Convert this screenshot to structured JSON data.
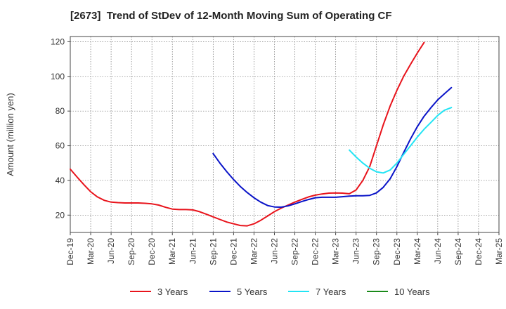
{
  "chart_data": {
    "type": "line",
    "title": "[2673]  Trend of StDev of 12-Month Moving Sum of Operating CF",
    "ylabel": "Amount (million yen)",
    "xlabel": "",
    "ylim": [
      10,
      123
    ],
    "yticks": [
      20,
      40,
      60,
      80,
      100,
      120
    ],
    "categories": [
      "Dec-19",
      "Mar-20",
      "Jun-20",
      "Sep-20",
      "Dec-20",
      "Mar-21",
      "Jun-21",
      "Sep-21",
      "Dec-21",
      "Mar-22",
      "Jun-22",
      "Sep-22",
      "Dec-22",
      "Mar-23",
      "Jun-23",
      "Sep-23",
      "Dec-23",
      "Mar-24",
      "Jun-24",
      "Sep-24",
      "Dec-24",
      "Mar-25"
    ],
    "grid": true,
    "legend_position": "bottom",
    "series": [
      {
        "name": "3 Years",
        "color": "#e8141c",
        "points": [
          [
            0,
            46.5
          ],
          [
            0.33,
            42
          ],
          [
            0.67,
            37.5
          ],
          [
            1,
            33.5
          ],
          [
            1.33,
            30.5
          ],
          [
            1.67,
            28.5
          ],
          [
            2,
            27.5
          ],
          [
            2.33,
            27.2
          ],
          [
            2.67,
            27
          ],
          [
            3,
            27
          ],
          [
            3.33,
            27
          ],
          [
            3.67,
            26.8
          ],
          [
            4,
            26.5
          ],
          [
            4.33,
            25.8
          ],
          [
            4.67,
            24.5
          ],
          [
            5,
            23.5
          ],
          [
            5.33,
            23.2
          ],
          [
            5.67,
            23.2
          ],
          [
            6,
            23
          ],
          [
            6.33,
            22
          ],
          [
            6.67,
            20.5
          ],
          [
            7,
            19
          ],
          [
            7.33,
            17.5
          ],
          [
            7.67,
            16
          ],
          [
            8,
            15
          ],
          [
            8.33,
            14
          ],
          [
            8.67,
            13.8
          ],
          [
            9,
            15
          ],
          [
            9.33,
            17
          ],
          [
            9.67,
            19.5
          ],
          [
            10,
            22
          ],
          [
            10.33,
            24
          ],
          [
            10.67,
            25.8
          ],
          [
            11,
            27.5
          ],
          [
            11.33,
            29
          ],
          [
            11.67,
            30.5
          ],
          [
            12,
            31.5
          ],
          [
            12.33,
            32.2
          ],
          [
            12.67,
            32.7
          ],
          [
            13,
            32.8
          ],
          [
            13.33,
            32.7
          ],
          [
            13.67,
            32.3
          ],
          [
            14,
            34.5
          ],
          [
            14.33,
            40
          ],
          [
            14.67,
            48
          ],
          [
            15,
            60
          ],
          [
            15.33,
            72
          ],
          [
            15.67,
            83
          ],
          [
            16,
            92
          ],
          [
            16.33,
            100
          ],
          [
            16.67,
            107
          ],
          [
            17,
            113.5
          ],
          [
            17.33,
            119.5
          ]
        ]
      },
      {
        "name": "5 Years",
        "color": "#0a14c8",
        "points": [
          [
            7,
            55.5
          ],
          [
            7.33,
            50
          ],
          [
            7.67,
            45
          ],
          [
            8,
            40.5
          ],
          [
            8.33,
            36.5
          ],
          [
            8.67,
            33
          ],
          [
            9,
            30
          ],
          [
            9.33,
            27.5
          ],
          [
            9.67,
            25.5
          ],
          [
            10,
            24.7
          ],
          [
            10.33,
            24.6
          ],
          [
            10.67,
            25.3
          ],
          [
            11,
            26.5
          ],
          [
            11.33,
            27.8
          ],
          [
            11.67,
            29
          ],
          [
            12,
            30
          ],
          [
            12.33,
            30.3
          ],
          [
            12.67,
            30.3
          ],
          [
            13,
            30.3
          ],
          [
            13.33,
            30.6
          ],
          [
            13.67,
            31
          ],
          [
            14,
            31.2
          ],
          [
            14.33,
            31.2
          ],
          [
            14.67,
            31.4
          ],
          [
            15,
            32.8
          ],
          [
            15.33,
            36
          ],
          [
            15.67,
            41
          ],
          [
            16,
            48
          ],
          [
            16.33,
            56
          ],
          [
            16.67,
            64
          ],
          [
            17,
            71
          ],
          [
            17.33,
            77
          ],
          [
            17.67,
            82
          ],
          [
            18,
            86.5
          ],
          [
            18.33,
            90
          ],
          [
            18.67,
            93.5
          ]
        ]
      },
      {
        "name": "7 Years",
        "color": "#22e4f4",
        "points": [
          [
            13.67,
            57.5
          ],
          [
            14,
            53.5
          ],
          [
            14.33,
            50
          ],
          [
            14.67,
            47
          ],
          [
            15,
            45
          ],
          [
            15.33,
            44.3
          ],
          [
            15.67,
            46
          ],
          [
            16,
            50
          ],
          [
            16.33,
            55
          ],
          [
            16.67,
            60
          ],
          [
            17,
            65
          ],
          [
            17.33,
            69.5
          ],
          [
            17.67,
            73.5
          ],
          [
            18,
            77.5
          ],
          [
            18.33,
            80.5
          ],
          [
            18.67,
            82
          ]
        ]
      },
      {
        "name": "10 Years",
        "color": "#1a8a1a",
        "points": []
      }
    ]
  }
}
